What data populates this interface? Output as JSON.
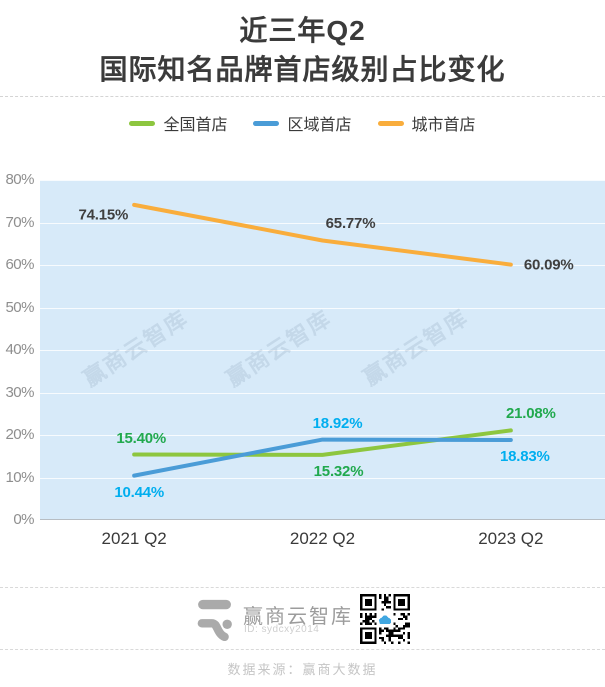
{
  "title": {
    "line1": "近三年Q2",
    "line2": "国际知名品牌首店级别占比变化"
  },
  "chart_data": {
    "type": "line",
    "categories": [
      "2021 Q2",
      "2022 Q2",
      "2023 Q2"
    ],
    "series": [
      {
        "key": "national-first-store",
        "name": "全国首店",
        "color": "#8dc63f",
        "label_color": "#21a94e",
        "values": [
          15.4,
          15.32,
          21.08
        ],
        "labels": [
          "15.40%",
          "15.32%",
          "21.08%"
        ],
        "label_pos": [
          {
            "pos": "above",
            "dx": 7
          },
          {
            "pos": "below",
            "dx": 16
          },
          {
            "pos": "above",
            "dx": 20
          }
        ]
      },
      {
        "key": "regional-first-store",
        "name": "区域首店",
        "color": "#4a9cd7",
        "label_color": "#00aeef",
        "values": [
          10.44,
          18.92,
          18.83
        ],
        "labels": [
          "10.44%",
          "18.92%",
          "18.83%"
        ],
        "label_pos": [
          {
            "pos": "below",
            "dx": 5
          },
          {
            "pos": "above",
            "dx": 15
          },
          {
            "pos": "below",
            "dx": 14
          }
        ]
      },
      {
        "key": "city-first-store",
        "name": "城市首店",
        "color": "#f9ad3c",
        "label_color": "#3f3f3f",
        "values": [
          74.15,
          65.77,
          60.09
        ],
        "labels": [
          "74.15%",
          "65.77%",
          "60.09%"
        ],
        "label_pos": [
          {
            "pos": "left",
            "dy": 10
          },
          {
            "pos": "above",
            "dx": 28
          },
          {
            "pos": "right",
            "dy": 0
          }
        ]
      }
    ],
    "ylim": [
      0,
      80
    ],
    "yticks": [
      "0%",
      "10%",
      "20%",
      "30%",
      "40%",
      "50%",
      "60%",
      "70%",
      "80%"
    ],
    "grid": true,
    "legend_position": "top",
    "plot_bg": "#d7eaf9",
    "watermark": "赢商云智库"
  },
  "footer": {
    "brand": "赢商云智库",
    "id_text": "ID: sydcxy2014",
    "source": "数据来源：赢商大数据"
  }
}
